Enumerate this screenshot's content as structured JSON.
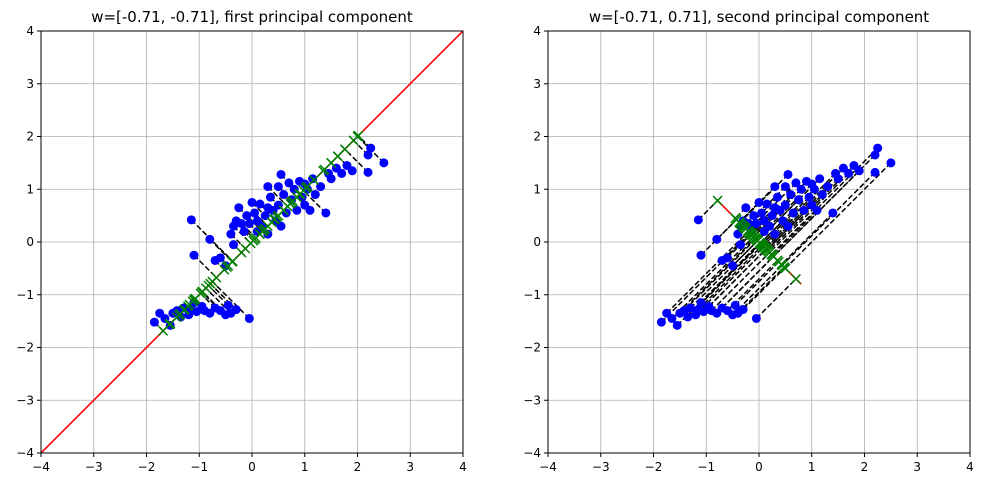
{
  "chart_data": [
    {
      "type": "scatter",
      "title": "w=[-0.71, -0.71], first principal component",
      "xlabel": "",
      "ylabel": "",
      "xlim": [
        -4,
        4
      ],
      "ylim": [
        -4,
        4
      ],
      "xticks": [
        -4,
        -3,
        -2,
        -1,
        0,
        1,
        2,
        3,
        4
      ],
      "yticks": [
        -4,
        -3,
        -2,
        -1,
        0,
        1,
        2,
        3,
        4
      ],
      "grid": true,
      "line": {
        "color": "#ff0000",
        "points": [
          [
            -4,
            -4
          ],
          [
            4,
            4
          ]
        ]
      },
      "direction": [
        -0.71,
        -0.71
      ],
      "colors": {
        "points": "#0000ff",
        "projections": "#008000",
        "connectors": "#000000"
      },
      "points": [
        [
          -1.85,
          -1.52
        ],
        [
          -1.75,
          -1.35
        ],
        [
          -1.65,
          -1.45
        ],
        [
          -1.55,
          -1.58
        ],
        [
          -1.5,
          -1.35
        ],
        [
          -1.42,
          -1.3
        ],
        [
          -1.35,
          -1.42
        ],
        [
          -1.3,
          -1.25
        ],
        [
          -1.2,
          -1.38
        ],
        [
          -1.15,
          -1.28
        ],
        [
          -1.1,
          -1.15
        ],
        [
          -1.05,
          -1.32
        ],
        [
          -0.95,
          -1.22
        ],
        [
          -0.9,
          -1.3
        ],
        [
          -0.8,
          -1.35
        ],
        [
          -0.7,
          -1.25
        ],
        [
          -0.6,
          -1.3
        ],
        [
          -0.5,
          -1.38
        ],
        [
          -0.4,
          -1.35
        ],
        [
          -0.45,
          -1.2
        ],
        [
          -0.3,
          -1.28
        ],
        [
          -0.05,
          -1.45
        ],
        [
          -1.15,
          0.42
        ],
        [
          -1.1,
          -0.25
        ],
        [
          -0.8,
          0.05
        ],
        [
          -0.7,
          -0.35
        ],
        [
          -0.6,
          -0.3
        ],
        [
          -0.5,
          -0.45
        ],
        [
          -0.35,
          -0.05
        ],
        [
          -0.4,
          0.15
        ],
        [
          -0.35,
          0.3
        ],
        [
          -0.3,
          0.4
        ],
        [
          -0.25,
          0.65
        ],
        [
          -0.2,
          0.35
        ],
        [
          -0.15,
          0.2
        ],
        [
          -0.1,
          0.5
        ],
        [
          -0.05,
          0.35
        ],
        [
          0.0,
          0.75
        ],
        [
          0.05,
          0.55
        ],
        [
          0.1,
          0.4
        ],
        [
          0.1,
          0.2
        ],
        [
          0.15,
          0.72
        ],
        [
          0.2,
          0.3
        ],
        [
          0.25,
          0.5
        ],
        [
          0.3,
          0.65
        ],
        [
          0.3,
          0.15
        ],
        [
          0.35,
          0.85
        ],
        [
          0.4,
          0.6
        ],
        [
          0.45,
          0.4
        ],
        [
          0.5,
          1.05
        ],
        [
          0.5,
          0.7
        ],
        [
          0.55,
          0.3
        ],
        [
          0.55,
          1.28
        ],
        [
          0.6,
          0.9
        ],
        [
          0.65,
          0.55
        ],
        [
          0.7,
          1.12
        ],
        [
          0.75,
          0.8
        ],
        [
          0.8,
          1.0
        ],
        [
          0.85,
          0.6
        ],
        [
          0.9,
          1.15
        ],
        [
          0.95,
          0.85
        ],
        [
          1.0,
          0.7
        ],
        [
          1.0,
          1.1
        ],
        [
          1.05,
          1.0
        ],
        [
          1.1,
          0.6
        ],
        [
          1.15,
          1.2
        ],
        [
          1.2,
          0.9
        ],
        [
          1.3,
          1.05
        ],
        [
          1.4,
          0.55
        ],
        [
          1.45,
          1.3
        ],
        [
          1.5,
          1.2
        ],
        [
          1.6,
          1.4
        ],
        [
          1.7,
          1.3
        ],
        [
          1.8,
          1.45
        ],
        [
          1.9,
          1.35
        ],
        [
          2.2,
          1.65
        ],
        [
          2.25,
          1.78
        ],
        [
          2.2,
          1.32
        ],
        [
          2.5,
          1.5
        ],
        [
          0.3,
          1.05
        ]
      ]
    },
    {
      "type": "scatter",
      "title": "w=[-0.71, 0.71], second principal component",
      "xlabel": "",
      "ylabel": "",
      "xlim": [
        -4,
        4
      ],
      "ylim": [
        -4,
        4
      ],
      "xticks": [
        -4,
        -3,
        -2,
        -1,
        0,
        1,
        2,
        3,
        4
      ],
      "yticks": [
        -4,
        -3,
        -2,
        -1,
        0,
        1,
        2,
        3,
        4
      ],
      "grid": true,
      "line": {
        "color": "#ff0000",
        "points": [
          [
            -0.8,
            0.8
          ],
          [
            0.8,
            -0.8
          ]
        ]
      },
      "direction": [
        -0.71,
        0.71
      ],
      "colors": {
        "points": "#0000ff",
        "projections": "#008000",
        "connectors": "#000000"
      }
    }
  ]
}
